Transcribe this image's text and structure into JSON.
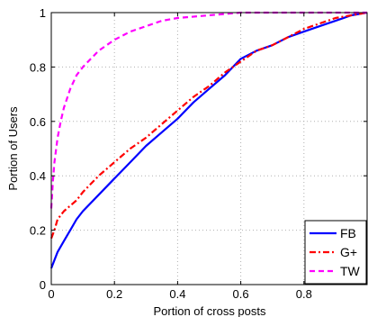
{
  "chart_data": {
    "type": "line",
    "title": "",
    "xlabel": "Portion of cross posts",
    "ylabel": "Portion of Users",
    "xlim": [
      0,
      1
    ],
    "ylim": [
      0,
      1
    ],
    "xticks": [
      "0",
      "0.2",
      "0.4",
      "0.6",
      "0.8"
    ],
    "yticks": [
      "0",
      "0.2",
      "0.4",
      "0.6",
      "0.8",
      "1"
    ],
    "grid": true,
    "legend_position": "bottom-right",
    "series": [
      {
        "name": "FB",
        "color": "#0000ff",
        "style": "solid",
        "x": [
          0,
          0.01,
          0.02,
          0.04,
          0.06,
          0.08,
          0.1,
          0.15,
          0.2,
          0.25,
          0.3,
          0.35,
          0.4,
          0.45,
          0.5,
          0.55,
          0.6,
          0.65,
          0.7,
          0.75,
          0.8,
          0.85,
          0.9,
          0.95,
          1.0
        ],
        "y": [
          0.06,
          0.09,
          0.12,
          0.16,
          0.2,
          0.24,
          0.27,
          0.33,
          0.39,
          0.45,
          0.51,
          0.56,
          0.61,
          0.67,
          0.72,
          0.77,
          0.83,
          0.86,
          0.88,
          0.91,
          0.93,
          0.95,
          0.97,
          0.99,
          1.0
        ]
      },
      {
        "name": "G+",
        "color": "#ff0000",
        "style": "dashdot",
        "x": [
          0,
          0.01,
          0.02,
          0.04,
          0.06,
          0.08,
          0.1,
          0.15,
          0.2,
          0.25,
          0.3,
          0.35,
          0.4,
          0.45,
          0.5,
          0.55,
          0.6,
          0.65,
          0.7,
          0.75,
          0.8,
          0.85,
          0.9,
          0.95,
          1.0
        ],
        "y": [
          0.17,
          0.2,
          0.24,
          0.27,
          0.29,
          0.31,
          0.34,
          0.4,
          0.45,
          0.5,
          0.54,
          0.59,
          0.64,
          0.69,
          0.73,
          0.78,
          0.82,
          0.86,
          0.88,
          0.91,
          0.94,
          0.96,
          0.98,
          0.99,
          1.0
        ]
      },
      {
        "name": "TW",
        "color": "#ff00ff",
        "style": "dashed",
        "x": [
          0,
          0.005,
          0.01,
          0.02,
          0.03,
          0.04,
          0.06,
          0.08,
          0.1,
          0.15,
          0.2,
          0.25,
          0.3,
          0.35,
          0.4,
          0.5,
          0.6,
          0.7,
          0.8,
          0.9,
          1.0
        ],
        "y": [
          0.28,
          0.38,
          0.45,
          0.54,
          0.6,
          0.65,
          0.72,
          0.77,
          0.8,
          0.86,
          0.9,
          0.93,
          0.95,
          0.97,
          0.98,
          0.99,
          1.0,
          1.0,
          1.0,
          1.0,
          1.0
        ]
      }
    ]
  }
}
